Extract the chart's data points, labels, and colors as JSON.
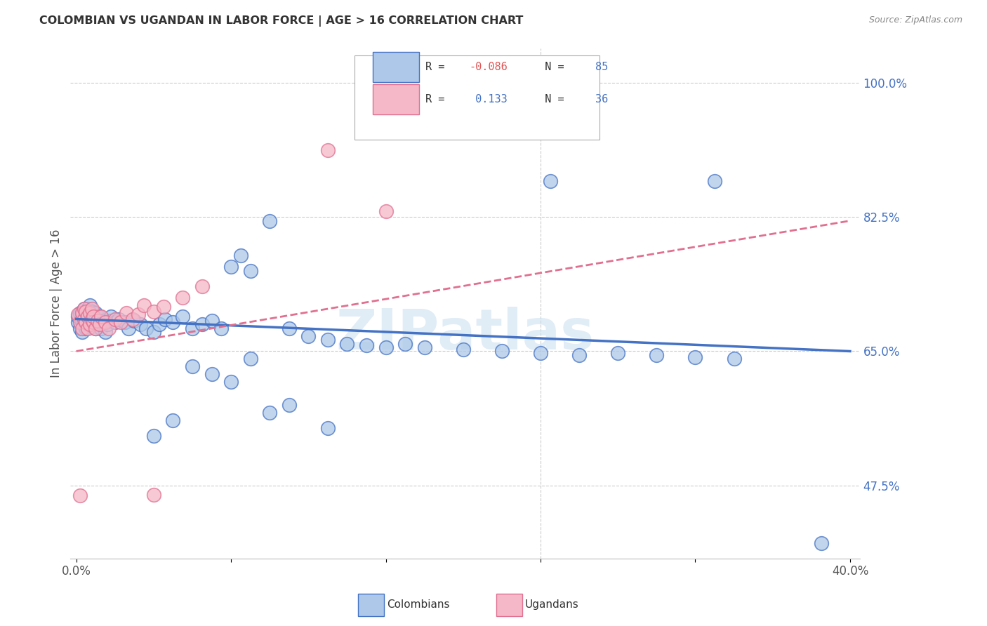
{
  "title": "COLOMBIAN VS UGANDAN IN LABOR FORCE | AGE > 16 CORRELATION CHART",
  "source": "Source: ZipAtlas.com",
  "ylabel": "In Labor Force | Age > 16",
  "watermark": "ZIPatlas",
  "xlim_min": -0.003,
  "xlim_max": 0.405,
  "ylim_min": 0.38,
  "ylim_max": 1.045,
  "xtick_positions": [
    0.0,
    0.08,
    0.16,
    0.24,
    0.32,
    0.4
  ],
  "xtick_labels": [
    "0.0%",
    "",
    "",
    "",
    "",
    "40.0%"
  ],
  "ytick_values": [
    1.0,
    0.825,
    0.65,
    0.475
  ],
  "ytick_labels": [
    "100.0%",
    "82.5%",
    "65.0%",
    "47.5%"
  ],
  "colombian_color": "#adc8e8",
  "ugandan_color": "#f5b8c8",
  "colombian_edge_color": "#4472c4",
  "ugandan_edge_color": "#e07090",
  "colombian_line_color": "#4472c4",
  "ugandan_line_color": "#e07090",
  "colombian_R": -0.086,
  "colombian_N": 85,
  "ugandan_R": 0.133,
  "ugandan_N": 36,
  "col_trend_x": [
    0.0,
    0.4
  ],
  "col_trend_y": [
    0.692,
    0.65
  ],
  "ug_trend_x": [
    0.0,
    0.4
  ],
  "ug_trend_y": [
    0.65,
    0.82
  ],
  "colombian_x": [
    0.001,
    0.001,
    0.002,
    0.002,
    0.003,
    0.003,
    0.003,
    0.004,
    0.004,
    0.004,
    0.005,
    0.005,
    0.005,
    0.006,
    0.006,
    0.006,
    0.007,
    0.007,
    0.007,
    0.008,
    0.008,
    0.008,
    0.009,
    0.009,
    0.01,
    0.01,
    0.01,
    0.011,
    0.011,
    0.012,
    0.012,
    0.013,
    0.014,
    0.015,
    0.016,
    0.017,
    0.018,
    0.02,
    0.022,
    0.025,
    0.027,
    0.03,
    0.033,
    0.036,
    0.04,
    0.043,
    0.046,
    0.05,
    0.055,
    0.06,
    0.065,
    0.07,
    0.075,
    0.08,
    0.085,
    0.09,
    0.1,
    0.11,
    0.12,
    0.13,
    0.14,
    0.15,
    0.16,
    0.17,
    0.18,
    0.2,
    0.22,
    0.24,
    0.26,
    0.28,
    0.3,
    0.32,
    0.34,
    0.245,
    0.33,
    0.385,
    0.1,
    0.13,
    0.08,
    0.06,
    0.07,
    0.09,
    0.11,
    0.05,
    0.04
  ],
  "colombian_y": [
    0.688,
    0.695,
    0.68,
    0.7,
    0.675,
    0.69,
    0.7,
    0.685,
    0.695,
    0.705,
    0.68,
    0.692,
    0.7,
    0.685,
    0.695,
    0.705,
    0.688,
    0.698,
    0.71,
    0.682,
    0.692,
    0.702,
    0.688,
    0.695,
    0.68,
    0.69,
    0.7,
    0.685,
    0.695,
    0.688,
    0.695,
    0.68,
    0.69,
    0.675,
    0.685,
    0.69,
    0.695,
    0.688,
    0.692,
    0.688,
    0.68,
    0.69,
    0.685,
    0.68,
    0.675,
    0.685,
    0.692,
    0.688,
    0.695,
    0.68,
    0.685,
    0.69,
    0.68,
    0.76,
    0.775,
    0.755,
    0.82,
    0.68,
    0.67,
    0.665,
    0.66,
    0.658,
    0.655,
    0.66,
    0.655,
    0.652,
    0.65,
    0.648,
    0.645,
    0.648,
    0.645,
    0.642,
    0.64,
    0.872,
    0.872,
    0.4,
    0.57,
    0.55,
    0.61,
    0.63,
    0.62,
    0.64,
    0.58,
    0.56,
    0.54
  ],
  "ugandan_x": [
    0.001,
    0.002,
    0.003,
    0.003,
    0.004,
    0.004,
    0.005,
    0.005,
    0.006,
    0.006,
    0.007,
    0.007,
    0.008,
    0.008,
    0.009,
    0.009,
    0.01,
    0.011,
    0.012,
    0.013,
    0.015,
    0.017,
    0.02,
    0.023,
    0.026,
    0.029,
    0.032,
    0.035,
    0.04,
    0.045,
    0.055,
    0.065,
    0.13,
    0.16,
    0.04,
    0.002
  ],
  "ugandan_y": [
    0.698,
    0.688,
    0.7,
    0.68,
    0.692,
    0.705,
    0.688,
    0.702,
    0.68,
    0.695,
    0.7,
    0.685,
    0.692,
    0.705,
    0.688,
    0.695,
    0.68,
    0.69,
    0.685,
    0.695,
    0.688,
    0.68,
    0.692,
    0.688,
    0.7,
    0.692,
    0.698,
    0.71,
    0.702,
    0.708,
    0.72,
    0.735,
    0.912,
    0.832,
    0.463,
    0.462
  ]
}
